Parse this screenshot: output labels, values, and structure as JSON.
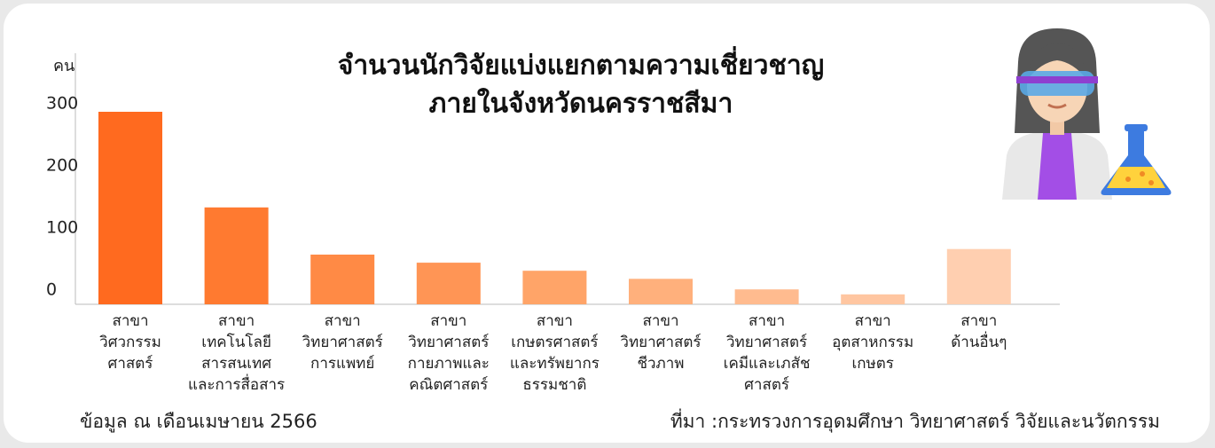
{
  "chart_data": {
    "type": "bar",
    "title": [
      "จำนวนนักวิจัยแบ่งแยกตามความเชี่ยวชาญ",
      "ภายในจังหวัดนครราชสีมา"
    ],
    "y_label": "คน",
    "categories": [
      [
        "สาขา",
        "วิศวกรรม",
        "ศาสตร์"
      ],
      [
        "สาขา",
        "เทคโนโลยี",
        "สารสนเทศ",
        "และการสื่อสาร"
      ],
      [
        "สาขา",
        "วิทยาศาสตร์",
        "การแพทย์"
      ],
      [
        "สาขา",
        "วิทยาศาสตร์",
        "กายภาพและ",
        "คณิตศาสตร์"
      ],
      [
        "สาขา",
        "เกษตรศาสตร์",
        "และทรัพยากร",
        "ธรรมชาติ"
      ],
      [
        "สาขา",
        "วิทยาศาสตร์",
        "ชีวภาพ"
      ],
      [
        "สาขา",
        "วิทยาศาสตร์",
        "เคมีและเภสัช",
        "ศาสตร์"
      ],
      [
        "สาขา",
        "อุตสาหกรรม",
        "เกษตร"
      ],
      [
        "สาขา",
        "ด้านอื่นๆ"
      ]
    ],
    "values": [
      310,
      156,
      80,
      67,
      54,
      41,
      24,
      16,
      89
    ],
    "colors": [
      "#ff6a1f",
      "#ff7a30",
      "#ff8a45",
      "#ff9555",
      "#ffa468",
      "#ffb07c",
      "#ffbb8f",
      "#ffc6a1",
      "#ffcfb0"
    ],
    "ylim": [
      0,
      400
    ],
    "yticks": [
      0,
      100,
      200,
      300
    ],
    "footnote_left": "ข้อมูล ณ เดือนเมษายน 2566",
    "footnote_right": "ที่มา :กระทรวงการอุดมศึกษา วิทยาศาสตร์ วิจัยและนวัตกรรม"
  }
}
